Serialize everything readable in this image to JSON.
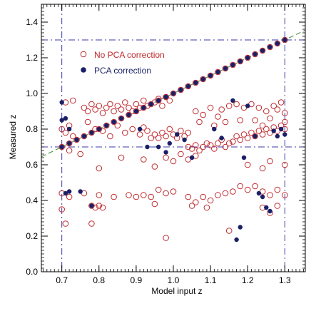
{
  "chart_data": {
    "type": "scatter",
    "xlabel": "Model input z",
    "ylabel": "Measured z",
    "xlim": [
      0.645,
      1.355
    ],
    "ylim": [
      0.0,
      1.5
    ],
    "x_ticks": [
      0.7,
      0.8,
      0.9,
      1.0,
      1.1,
      1.2,
      1.3
    ],
    "x_tick_labels": [
      "0.7",
      "0.8",
      "0.9",
      "1.0",
      "1.1",
      "1.2",
      "1.3"
    ],
    "y_ticks": [
      0.0,
      0.2,
      0.4,
      0.6,
      0.8,
      1.0,
      1.2,
      1.4
    ],
    "y_tick_labels": [
      "0.0",
      "0.2",
      "0.4",
      "0.6",
      "0.8",
      "1.0",
      "1.2",
      "1.4"
    ],
    "legend_position": "top-left",
    "grid": false,
    "colors": {
      "no_pca": "#c0282c",
      "pca": "#1a1f66",
      "guide": "#3a3aa8",
      "diag": "#2e8b2e"
    },
    "reference_lines": {
      "vertical_x": [
        0.7,
        1.3
      ],
      "horizontal_y": [
        0.7,
        1.3
      ],
      "diagonal_green": [
        [
          0.645,
          0.645
        ],
        [
          1.355,
          1.355
        ]
      ]
    },
    "series": [
      {
        "name": "No PCA correction",
        "marker": "open-circle",
        "points": [
          [
            0.7,
            0.7
          ],
          [
            0.72,
            0.72
          ],
          [
            0.74,
            0.74
          ],
          [
            0.76,
            0.76
          ],
          [
            0.78,
            0.78
          ],
          [
            0.8,
            0.8
          ],
          [
            0.82,
            0.82
          ],
          [
            0.84,
            0.84
          ],
          [
            0.86,
            0.86
          ],
          [
            0.88,
            0.88
          ],
          [
            0.9,
            0.9
          ],
          [
            0.92,
            0.92
          ],
          [
            0.94,
            0.94
          ],
          [
            0.96,
            0.96
          ],
          [
            0.98,
            0.98
          ],
          [
            1.0,
            1.0
          ],
          [
            1.02,
            1.02
          ],
          [
            1.04,
            1.04
          ],
          [
            1.06,
            1.06
          ],
          [
            1.08,
            1.08
          ],
          [
            1.1,
            1.1
          ],
          [
            1.12,
            1.12
          ],
          [
            1.14,
            1.14
          ],
          [
            1.16,
            1.16
          ],
          [
            1.18,
            1.18
          ],
          [
            1.2,
            1.2
          ],
          [
            1.22,
            1.22
          ],
          [
            1.24,
            1.24
          ],
          [
            1.26,
            1.26
          ],
          [
            1.28,
            1.28
          ],
          [
            1.3,
            1.3
          ],
          [
            0.73,
            0.96
          ],
          [
            0.71,
            0.95
          ],
          [
            0.76,
            0.92
          ],
          [
            0.77,
            0.9
          ],
          [
            0.78,
            0.94
          ],
          [
            0.79,
            0.91
          ],
          [
            0.8,
            0.93
          ],
          [
            0.81,
            0.89
          ],
          [
            0.82,
            0.92
          ],
          [
            0.83,
            0.94
          ],
          [
            0.84,
            0.9
          ],
          [
            0.85,
            0.93
          ],
          [
            0.86,
            0.91
          ],
          [
            0.87,
            0.95
          ],
          [
            0.88,
            0.92
          ],
          [
            0.89,
            0.9
          ],
          [
            0.9,
            0.94
          ],
          [
            0.91,
            0.92
          ],
          [
            0.92,
            0.96
          ],
          [
            0.93,
            0.93
          ],
          [
            0.95,
            0.95
          ],
          [
            0.96,
            0.97
          ],
          [
            0.97,
            0.93
          ],
          [
            0.98,
            0.98
          ],
          [
            0.99,
            0.96
          ],
          [
            0.7,
            0.8
          ],
          [
            0.71,
            0.78
          ],
          [
            0.72,
            0.82
          ],
          [
            0.73,
            0.76
          ],
          [
            0.77,
            0.84
          ],
          [
            0.79,
            0.8
          ],
          [
            0.81,
            0.79
          ],
          [
            0.83,
            0.76
          ],
          [
            0.85,
            0.82
          ],
          [
            0.87,
            0.78
          ],
          [
            0.89,
            0.8
          ],
          [
            0.91,
            0.77
          ],
          [
            0.92,
            0.81
          ],
          [
            0.93,
            0.79
          ],
          [
            0.94,
            0.75
          ],
          [
            0.95,
            0.77
          ],
          [
            0.96,
            0.75
          ],
          [
            0.97,
            0.78
          ],
          [
            0.98,
            0.76
          ],
          [
            0.99,
            0.8
          ],
          [
            1.0,
            0.77
          ],
          [
            1.01,
            0.75
          ],
          [
            1.02,
            0.79
          ],
          [
            1.03,
            0.76
          ],
          [
            1.04,
            0.78
          ],
          [
            1.04,
            0.7
          ],
          [
            1.05,
            0.69
          ],
          [
            1.06,
            0.71
          ],
          [
            1.07,
            0.68
          ],
          [
            1.08,
            0.7
          ],
          [
            1.09,
            0.72
          ],
          [
            1.1,
            0.71
          ],
          [
            1.11,
            0.69
          ],
          [
            1.12,
            0.72
          ],
          [
            1.13,
            0.74
          ],
          [
            1.14,
            0.7
          ],
          [
            1.15,
            0.72
          ],
          [
            1.16,
            0.73
          ],
          [
            1.17,
            0.76
          ],
          [
            1.18,
            0.74
          ],
          [
            1.19,
            0.77
          ],
          [
            1.2,
            0.75
          ],
          [
            1.21,
            0.78
          ],
          [
            1.22,
            0.76
          ],
          [
            1.23,
            0.79
          ],
          [
            1.24,
            0.77
          ],
          [
            1.25,
            0.8
          ],
          [
            1.26,
            0.78
          ],
          [
            1.27,
            0.81
          ],
          [
            1.28,
            0.79
          ],
          [
            1.29,
            0.82
          ],
          [
            1.3,
            0.8
          ],
          [
            1.06,
            0.9
          ],
          [
            1.08,
            0.88
          ],
          [
            1.1,
            0.92
          ],
          [
            1.12,
            0.87
          ],
          [
            1.13,
            0.91
          ],
          [
            1.15,
            0.93
          ],
          [
            1.17,
            0.94
          ],
          [
            1.19,
            0.92
          ],
          [
            1.21,
            0.94
          ],
          [
            1.23,
            0.92
          ],
          [
            1.25,
            0.9
          ],
          [
            1.27,
            0.93
          ],
          [
            1.28,
            0.91
          ],
          [
            1.29,
            0.95
          ],
          [
            1.3,
            0.89
          ],
          [
            1.07,
            0.84
          ],
          [
            1.11,
            0.82
          ],
          [
            1.14,
            0.84
          ],
          [
            1.18,
            0.85
          ],
          [
            1.22,
            0.85
          ],
          [
            1.24,
            0.82
          ],
          [
            1.26,
            0.86
          ],
          [
            1.3,
            0.84
          ],
          [
            0.98,
            0.64
          ],
          [
            1.0,
            0.62
          ],
          [
            1.02,
            0.66
          ],
          [
            1.04,
            0.63
          ],
          [
            1.06,
            0.65
          ],
          [
            0.95,
            0.59
          ],
          [
            0.92,
            0.63
          ],
          [
            0.86,
            0.64
          ],
          [
            0.8,
            0.58
          ],
          [
            1.2,
            0.6
          ],
          [
            1.26,
            0.62
          ],
          [
            1.3,
            0.6
          ],
          [
            1.24,
            0.58
          ],
          [
            0.72,
            0.68
          ],
          [
            0.75,
            0.66
          ],
          [
            0.7,
            0.44
          ],
          [
            0.72,
            0.42
          ],
          [
            0.76,
            0.44
          ],
          [
            0.8,
            0.43
          ],
          [
            0.84,
            0.42
          ],
          [
            0.88,
            0.43
          ],
          [
            0.9,
            0.42
          ],
          [
            0.92,
            0.43
          ],
          [
            0.94,
            0.42
          ],
          [
            0.96,
            0.46
          ],
          [
            0.98,
            0.44
          ],
          [
            1.0,
            0.45
          ],
          [
            1.04,
            0.42
          ],
          [
            1.06,
            0.39
          ],
          [
            1.08,
            0.42
          ],
          [
            1.1,
            0.4
          ],
          [
            1.12,
            0.43
          ],
          [
            1.14,
            0.44
          ],
          [
            1.16,
            0.45
          ],
          [
            1.18,
            0.48
          ],
          [
            1.2,
            0.46
          ],
          [
            1.22,
            0.48
          ],
          [
            1.24,
            0.45
          ],
          [
            1.26,
            0.43
          ],
          [
            1.28,
            0.46
          ],
          [
            1.3,
            0.43
          ],
          [
            0.78,
            0.37
          ],
          [
            0.79,
            0.36
          ],
          [
            0.8,
            0.37
          ],
          [
            0.81,
            0.36
          ],
          [
            0.95,
            0.38
          ],
          [
            1.05,
            0.37
          ],
          [
            1.09,
            0.36
          ],
          [
            1.24,
            0.36
          ],
          [
            1.26,
            0.33
          ],
          [
            1.28,
            0.37
          ],
          [
            0.7,
            0.35
          ],
          [
            0.71,
            0.27
          ],
          [
            0.78,
            0.27
          ],
          [
            0.98,
            0.19
          ],
          [
            1.15,
            0.23
          ]
        ]
      },
      {
        "name": "PCA correction",
        "marker": "filled-circle",
        "points": [
          [
            0.7,
            0.7
          ],
          [
            0.72,
            0.72
          ],
          [
            0.74,
            0.74
          ],
          [
            0.76,
            0.76
          ],
          [
            0.78,
            0.78
          ],
          [
            0.8,
            0.8
          ],
          [
            0.82,
            0.82
          ],
          [
            0.84,
            0.84
          ],
          [
            0.86,
            0.86
          ],
          [
            0.88,
            0.88
          ],
          [
            0.9,
            0.9
          ],
          [
            0.92,
            0.92
          ],
          [
            0.94,
            0.94
          ],
          [
            0.96,
            0.96
          ],
          [
            0.98,
            0.98
          ],
          [
            1.0,
            1.0
          ],
          [
            1.02,
            1.02
          ],
          [
            1.04,
            1.04
          ],
          [
            1.06,
            1.06
          ],
          [
            1.08,
            1.08
          ],
          [
            1.1,
            1.1
          ],
          [
            1.12,
            1.12
          ],
          [
            1.14,
            1.14
          ],
          [
            1.16,
            1.16
          ],
          [
            1.18,
            1.18
          ],
          [
            1.2,
            1.2
          ],
          [
            1.22,
            1.22
          ],
          [
            1.24,
            1.24
          ],
          [
            1.26,
            1.26
          ],
          [
            1.28,
            1.28
          ],
          [
            1.3,
            1.3
          ],
          [
            0.7,
            0.95
          ],
          [
            0.7,
            0.85
          ],
          [
            0.71,
            0.86
          ],
          [
            0.72,
            0.8
          ],
          [
            0.71,
            0.44
          ],
          [
            0.72,
            0.45
          ],
          [
            0.75,
            0.45
          ],
          [
            0.78,
            0.37
          ],
          [
            0.91,
            0.8
          ],
          [
            0.93,
            0.7
          ],
          [
            0.96,
            0.7
          ],
          [
            0.98,
            0.67
          ],
          [
            0.99,
            0.72
          ],
          [
            1.01,
            0.77
          ],
          [
            1.03,
            0.74
          ],
          [
            1.05,
            0.64
          ],
          [
            1.11,
            0.8
          ],
          [
            1.13,
            0.75
          ],
          [
            1.16,
            0.96
          ],
          [
            1.17,
            0.18
          ],
          [
            1.18,
            0.25
          ],
          [
            1.19,
            0.64
          ],
          [
            1.2,
            0.93
          ],
          [
            1.22,
            0.76
          ],
          [
            1.23,
            0.44
          ],
          [
            1.24,
            0.42
          ],
          [
            1.25,
            0.36
          ],
          [
            1.26,
            0.34
          ],
          [
            1.27,
            0.79
          ],
          [
            1.28,
            0.76
          ],
          [
            1.29,
            0.8
          ],
          [
            1.3,
            0.77
          ]
        ]
      }
    ]
  }
}
